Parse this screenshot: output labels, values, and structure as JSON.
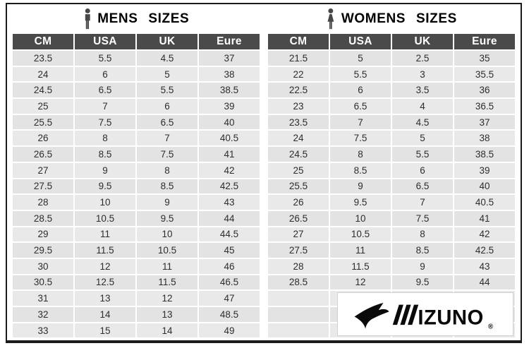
{
  "colors": {
    "header_bg": "#4a4a4a",
    "header_text": "#ffffff",
    "row_gray": "#e3e3e3",
    "row_gray_alt": "#e9e9e9",
    "frame_border": "#1b1b1b",
    "title_text": "#000000",
    "icon_fill": "#474747",
    "logo_black": "#0a0a0a"
  },
  "chart_data": [
    {
      "type": "table",
      "title": "MENS SIZES",
      "icon": "male-person",
      "columns": [
        "CM",
        "USA",
        "UK",
        "Eure"
      ],
      "rows": [
        [
          "23.5",
          "5.5",
          "4.5",
          "37"
        ],
        [
          "24",
          "6",
          "5",
          "38"
        ],
        [
          "24.5",
          "6.5",
          "5.5",
          "38.5"
        ],
        [
          "25",
          "7",
          "6",
          "39"
        ],
        [
          "25.5",
          "7.5",
          "6.5",
          "40"
        ],
        [
          "26",
          "8",
          "7",
          "40.5"
        ],
        [
          "26.5",
          "8.5",
          "7.5",
          "41"
        ],
        [
          "27",
          "9",
          "8",
          "42"
        ],
        [
          "27.5",
          "9.5",
          "8.5",
          "42.5"
        ],
        [
          "28",
          "10",
          "9",
          "43"
        ],
        [
          "28.5",
          "10.5",
          "9.5",
          "44"
        ],
        [
          "29",
          "11",
          "10",
          "44.5"
        ],
        [
          "29.5",
          "11.5",
          "10.5",
          "45"
        ],
        [
          "30",
          "12",
          "11",
          "46"
        ],
        [
          "30.5",
          "12.5",
          "11.5",
          "46.5"
        ],
        [
          "31",
          "13",
          "12",
          "47"
        ],
        [
          "32",
          "14",
          "13",
          "48.5"
        ],
        [
          "33",
          "15",
          "14",
          "49"
        ]
      ]
    },
    {
      "type": "table",
      "title": "WOMENS SIZES",
      "icon": "female-person",
      "columns": [
        "CM",
        "USA",
        "UK",
        "Eure"
      ],
      "rows": [
        [
          "21.5",
          "5",
          "2.5",
          "35"
        ],
        [
          "22",
          "5.5",
          "3",
          "35.5"
        ],
        [
          "22.5",
          "6",
          "3.5",
          "36"
        ],
        [
          "23",
          "6.5",
          "4",
          "36.5"
        ],
        [
          "23.5",
          "7",
          "4.5",
          "37"
        ],
        [
          "24",
          "7.5",
          "5",
          "38"
        ],
        [
          "24.5",
          "8",
          "5.5",
          "38.5"
        ],
        [
          "25",
          "8.5",
          "6",
          "39"
        ],
        [
          "25.5",
          "9",
          "6.5",
          "40"
        ],
        [
          "26",
          "9.5",
          "7",
          "40.5"
        ],
        [
          "26.5",
          "10",
          "7.5",
          "41"
        ],
        [
          "27",
          "10.5",
          "8",
          "42"
        ],
        [
          "27.5",
          "11",
          "8.5",
          "42.5"
        ],
        [
          "28",
          "11.5",
          "9",
          "43"
        ],
        [
          "28.5",
          "12",
          "9.5",
          "44"
        ],
        [
          "",
          "",
          "",
          ""
        ],
        [
          "",
          "",
          "",
          ""
        ],
        [
          "",
          "",
          "",
          ""
        ]
      ]
    }
  ],
  "logo": {
    "brand": "Mizuno",
    "wordmark_tail": "IZUNO",
    "registered": "®"
  }
}
